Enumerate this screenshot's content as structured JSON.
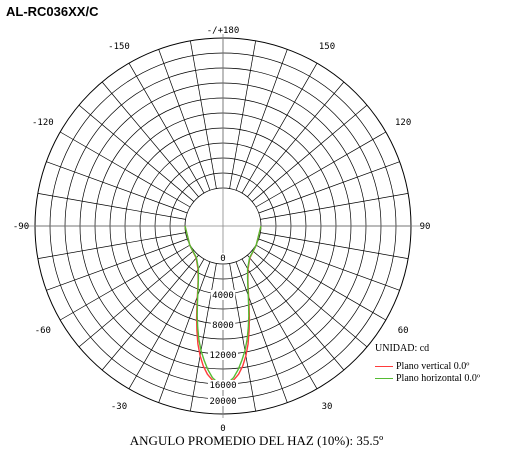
{
  "chart_data": {
    "type": "polar-line",
    "title": "AL-RC036XX/C",
    "footer": "ANGULO PROMEDIO DEL HAZ  (10%): 35.5º",
    "unit_label": "UNIDAD: cd",
    "radial_max": 20000,
    "radial_ticks": [
      "0",
      "4000",
      "8000",
      "12000",
      "16000",
      "20000"
    ],
    "radial_values": [
      0,
      4000,
      8000,
      12000,
      16000,
      20000
    ],
    "angle_labels": [
      {
        "text": "-/+180",
        "deg": 180
      },
      {
        "text": "150",
        "deg": 150
      },
      {
        "text": "120",
        "deg": 120
      },
      {
        "text": "90",
        "deg": 90
      },
      {
        "text": "60",
        "deg": 60
      },
      {
        "text": "30",
        "deg": 30
      },
      {
        "text": "-30",
        "deg": -30
      },
      {
        "text": "-60",
        "deg": -60
      },
      {
        "text": "-90",
        "deg": -90
      },
      {
        "text": "-120",
        "deg": -120
      },
      {
        "text": "-150",
        "deg": -150
      }
    ],
    "series": [
      {
        "name": "Plano vertical 0.0º",
        "color": "#ff3b3b",
        "angles": [
          0,
          2,
          4,
          6,
          8,
          10,
          12,
          14,
          16,
          18,
          20,
          22,
          25,
          30,
          40,
          60,
          90
        ],
        "values": [
          16000,
          15900,
          15500,
          14800,
          13800,
          12500,
          11000,
          9300,
          7700,
          6200,
          4900,
          3900,
          2800,
          1600,
          500,
          50,
          0
        ]
      },
      {
        "name": "Plano horizontal 0.0º",
        "color": "#55bb33",
        "angles": [
          0,
          2,
          4,
          6,
          8,
          10,
          12,
          14,
          16,
          18,
          20,
          22,
          25,
          30,
          40,
          60,
          90
        ],
        "values": [
          16000,
          15800,
          15200,
          14200,
          13000,
          11800,
          10400,
          8900,
          7400,
          6000,
          4800,
          3800,
          2700,
          1500,
          450,
          50,
          0
        ]
      }
    ]
  }
}
